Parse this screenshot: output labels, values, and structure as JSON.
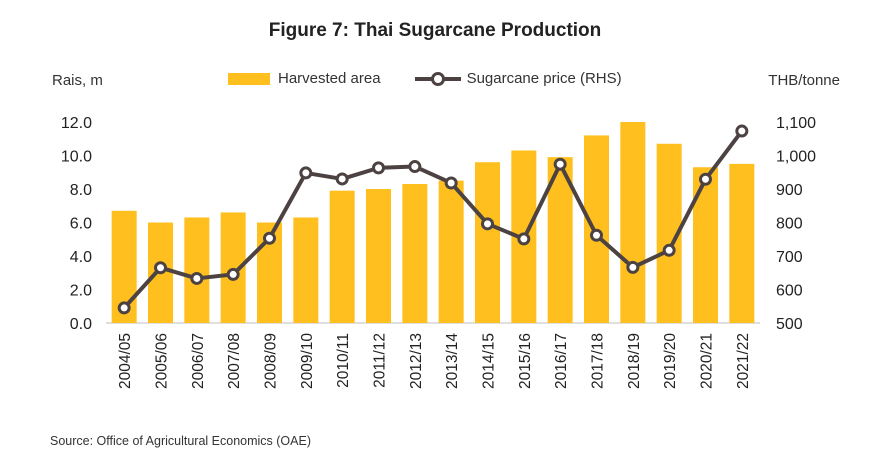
{
  "title": "Figure 7: Thai Sugarcane Production",
  "source": "Source: Office of Agricultural Economics (OAE)",
  "colors": {
    "bar": "#FFC01F",
    "line": "#4D4242",
    "marker_fill": "#FFFFFF"
  },
  "chart_data": {
    "type": "bar",
    "title": "Figure 7: Thai Sugarcane Production",
    "y_left_label": "Rais, m",
    "y_right_label": "THB/tonne",
    "ylim_left": [
      0,
      12
    ],
    "ylim_right": [
      500,
      1100
    ],
    "y_left_ticks": [
      "0.0",
      "2.0",
      "4.0",
      "6.0",
      "8.0",
      "10.0",
      "12.0"
    ],
    "y_right_ticks": [
      "500",
      "600",
      "700",
      "800",
      "900",
      "1,000",
      "1,100"
    ],
    "grid": false,
    "legend_position": "top-center",
    "categories": [
      "2004/05",
      "2005/06",
      "2006/07",
      "2007/08",
      "2008/09",
      "2009/10",
      "2010/11",
      "2011/12",
      "2012/13",
      "2013/14",
      "2014/15",
      "2015/16",
      "2016/17",
      "2017/18",
      "2018/19",
      "2019/20",
      "2020/21",
      "2021/22"
    ],
    "series": [
      {
        "name": "Harvested area",
        "type": "bar",
        "axis": "left",
        "values": [
          6.7,
          6.0,
          6.3,
          6.6,
          6.0,
          6.3,
          7.9,
          8.0,
          8.3,
          8.5,
          9.6,
          10.3,
          9.9,
          11.2,
          12.0,
          10.7,
          9.3,
          9.5
        ]
      },
      {
        "name": "Sugarcane price (RHS)",
        "type": "line",
        "axis": "right",
        "values": [
          545,
          665,
          633,
          645,
          753,
          948,
          930,
          963,
          967,
          918,
          796,
          751,
          974,
          762,
          666,
          717,
          929,
          1073
        ]
      }
    ]
  }
}
